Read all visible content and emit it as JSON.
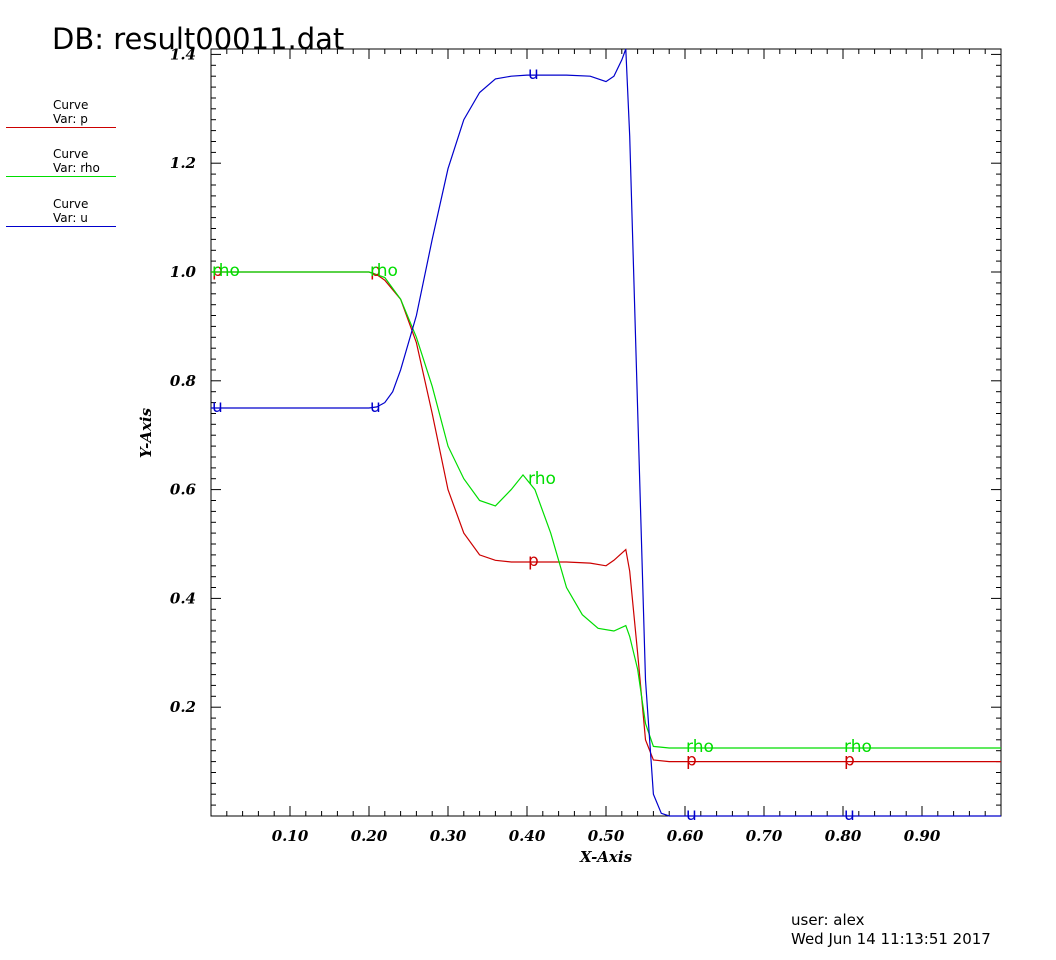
{
  "header": {
    "title": "DB: result00011.dat"
  },
  "legend": [
    {
      "line1": "Curve",
      "line2": "Var: p",
      "color": "#cc0000"
    },
    {
      "line1": "Curve",
      "line2": "Var: rho",
      "color": "#00dd00"
    },
    {
      "line1": "Curve",
      "line2": "Var: u",
      "color": "#0000cc"
    }
  ],
  "footer": {
    "user": "user: alex",
    "date": "Wed Jun 14 11:13:51 2017"
  },
  "chart_data": {
    "type": "line",
    "title": "",
    "xlabel": "X-Axis",
    "ylabel": "Y-Axis",
    "xlim": [
      0.0,
      1.0
    ],
    "ylim": [
      0.0,
      1.41
    ],
    "xticks": [
      "0.10",
      "0.20",
      "0.30",
      "0.40",
      "0.50",
      "0.60",
      "0.70",
      "0.80",
      "0.90"
    ],
    "xtick_values": [
      0.1,
      0.2,
      0.3,
      0.4,
      0.5,
      0.6,
      0.7,
      0.8,
      0.9
    ],
    "yticks": [
      "0.2",
      "0.4",
      "0.6",
      "0.8",
      "1.0",
      "1.2",
      "1.4"
    ],
    "ytick_values": [
      0.2,
      0.4,
      0.6,
      0.8,
      1.0,
      1.2,
      1.4
    ],
    "series": [
      {
        "name": "p",
        "label": "p",
        "color": "#cc0000",
        "label_x": [
          0.0,
          0.2,
          0.4,
          0.6,
          0.8
        ],
        "x": [
          0.0,
          0.18,
          0.2,
          0.21,
          0.22,
          0.24,
          0.26,
          0.28,
          0.3,
          0.32,
          0.34,
          0.36,
          0.38,
          0.4,
          0.42,
          0.45,
          0.48,
          0.5,
          0.51,
          0.525,
          0.53,
          0.54,
          0.55,
          0.56,
          0.58,
          0.6,
          0.7,
          0.8,
          0.9,
          1.0
        ],
        "y": [
          1.0,
          1.0,
          1.0,
          0.995,
          0.985,
          0.95,
          0.87,
          0.74,
          0.6,
          0.52,
          0.48,
          0.47,
          0.467,
          0.467,
          0.467,
          0.467,
          0.465,
          0.46,
          0.47,
          0.49,
          0.45,
          0.3,
          0.14,
          0.103,
          0.1,
          0.1,
          0.1,
          0.1,
          0.1,
          0.1
        ]
      },
      {
        "name": "rho",
        "label": "rho",
        "color": "#00dd00",
        "label_x": [
          0.0,
          0.2,
          0.4,
          0.6,
          0.8
        ],
        "x": [
          0.0,
          0.18,
          0.2,
          0.22,
          0.24,
          0.26,
          0.28,
          0.3,
          0.32,
          0.34,
          0.36,
          0.38,
          0.395,
          0.41,
          0.43,
          0.45,
          0.47,
          0.49,
          0.51,
          0.525,
          0.53,
          0.54,
          0.55,
          0.56,
          0.58,
          0.6,
          0.7,
          0.8,
          0.9,
          1.0
        ],
        "y": [
          1.0,
          1.0,
          1.0,
          0.99,
          0.95,
          0.88,
          0.79,
          0.68,
          0.62,
          0.58,
          0.57,
          0.6,
          0.627,
          0.6,
          0.52,
          0.42,
          0.37,
          0.345,
          0.34,
          0.35,
          0.33,
          0.27,
          0.17,
          0.128,
          0.125,
          0.125,
          0.125,
          0.125,
          0.125,
          0.125
        ]
      },
      {
        "name": "u",
        "label": "u",
        "color": "#0000cc",
        "label_x": [
          0.0,
          0.2,
          0.4,
          0.6,
          0.8
        ],
        "x": [
          0.0,
          0.18,
          0.2,
          0.21,
          0.22,
          0.23,
          0.24,
          0.26,
          0.28,
          0.3,
          0.32,
          0.34,
          0.36,
          0.38,
          0.4,
          0.45,
          0.48,
          0.5,
          0.51,
          0.52,
          0.525,
          0.53,
          0.54,
          0.55,
          0.56,
          0.57,
          0.58,
          0.6,
          0.7,
          0.8,
          0.9,
          1.0
        ],
        "y": [
          0.75,
          0.75,
          0.75,
          0.752,
          0.76,
          0.78,
          0.82,
          0.92,
          1.06,
          1.19,
          1.28,
          1.33,
          1.355,
          1.36,
          1.362,
          1.362,
          1.36,
          1.35,
          1.36,
          1.39,
          1.41,
          1.25,
          0.75,
          0.25,
          0.04,
          0.005,
          0.0,
          0.0,
          0.0,
          0.0,
          0.0,
          0.0
        ]
      }
    ]
  }
}
